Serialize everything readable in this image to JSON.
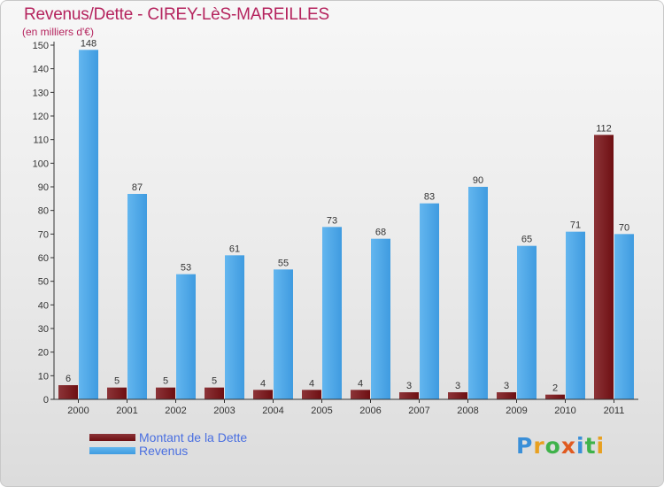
{
  "title": "Revenus/Dette - CIREY-LèS-MAREILLES",
  "subtitle": "(en milliers d'€)",
  "logo": {
    "text": "Proxiti",
    "colors": [
      "#3a8fd8",
      "#e8a020",
      "#3fb24a",
      "#e05a20",
      "#3a8fd8",
      "#3fb24a",
      "#e8a020"
    ]
  },
  "colors": {
    "dette": "#6e0f12",
    "dette_light": "#8c3438",
    "revenus": "#3f9be0",
    "revenus_light": "#63b6ef",
    "axis": "#333333",
    "grid": "#bbbbbb"
  },
  "chart_data": {
    "type": "bar",
    "categories": [
      "2000",
      "2001",
      "2002",
      "2003",
      "2004",
      "2005",
      "2006",
      "2007",
      "2008",
      "2009",
      "2010",
      "2011"
    ],
    "series": [
      {
        "name": "Montant de la Dette",
        "values": [
          6,
          5,
          5,
          5,
          4,
          4,
          4,
          3,
          3,
          3,
          2,
          112
        ]
      },
      {
        "name": "Revenus",
        "values": [
          148,
          87,
          53,
          61,
          55,
          73,
          68,
          83,
          90,
          65,
          71,
          70
        ]
      }
    ],
    "yticks": [
      0,
      10,
      20,
      30,
      40,
      50,
      60,
      70,
      80,
      90,
      100,
      110,
      120,
      130,
      140,
      150
    ],
    "ylim": [
      0,
      150
    ],
    "grid": false,
    "legend_position": "bottom-left"
  }
}
